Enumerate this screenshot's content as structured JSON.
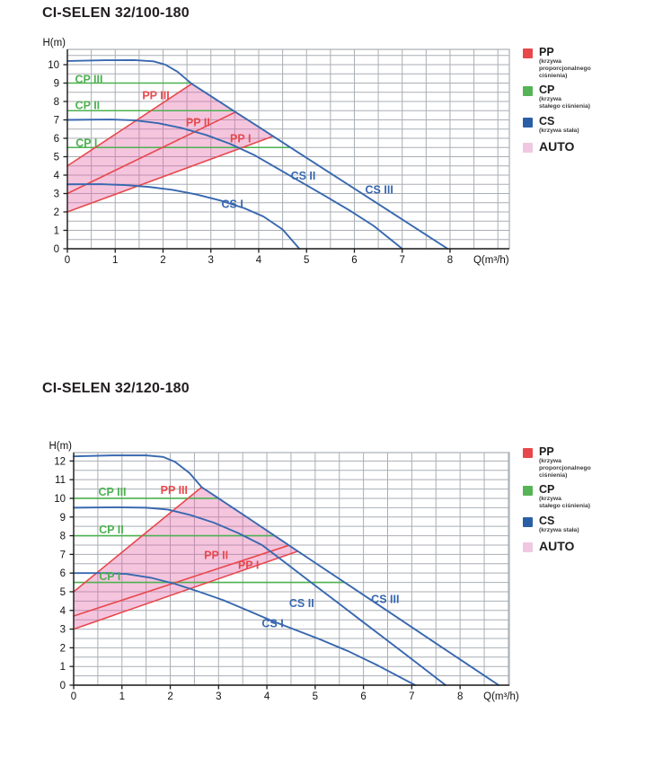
{
  "colors": {
    "pp": "#e8494d",
    "cp": "#4cb151",
    "cs": "#3868af",
    "auto_fill": "#e25fa4",
    "auto_swatch": "#efc7e1",
    "grid": "#a9aeb4",
    "axis": "#1c1c1c",
    "title": "#221e1f"
  },
  "legend": {
    "items": [
      {
        "key": "pp",
        "label": "PP",
        "color": "#e8474b",
        "desc_lines": [
          "(krzywa",
          "proporcjonalnego",
          "ciśnienia)"
        ]
      },
      {
        "key": "cp",
        "label": "CP",
        "color": "#56b456",
        "desc_lines": [
          "(krzywa",
          "stałego ciśnienia)"
        ]
      },
      {
        "key": "cs",
        "label": "CS",
        "color": "#2b5fa5",
        "desc_lines": [
          "(krzywa stała)"
        ]
      },
      {
        "key": "auto",
        "label": "AUTO",
        "color": "#efc7e1",
        "desc_lines": []
      }
    ]
  },
  "chart_data": [
    {
      "type": "line",
      "title": "CI-SELEN 32/100-180",
      "xlabel": "Q(m³/h)",
      "ylabel": "H(m)",
      "xlim": [
        0,
        9.24
      ],
      "ylim": [
        0,
        10.83
      ],
      "xticks": [
        0,
        1,
        2,
        3,
        4,
        5,
        6,
        7,
        8
      ],
      "yticks": [
        0,
        1,
        2,
        3,
        4,
        5,
        6,
        7,
        8,
        9,
        10
      ],
      "grid_step": 0.5,
      "grid": true,
      "legend_position": "right",
      "series": [
        {
          "name": "CP I",
          "role": "cp",
          "points": [
            [
              0,
              5.5
            ],
            [
              4.67,
              5.5
            ]
          ]
        },
        {
          "name": "CP II",
          "role": "cp",
          "points": [
            [
              0,
              7.5
            ],
            [
              3.47,
              7.5
            ]
          ]
        },
        {
          "name": "CP III",
          "role": "cp",
          "points": [
            [
              0,
              9.0
            ],
            [
              2.58,
              9.0
            ]
          ]
        },
        {
          "name": "PP I",
          "role": "pp",
          "points": [
            [
              0,
              2.0
            ],
            [
              4.3,
              6.11
            ]
          ]
        },
        {
          "name": "PP II",
          "role": "pp",
          "points": [
            [
              0,
              3.0
            ],
            [
              3.52,
              7.43
            ]
          ]
        },
        {
          "name": "PP III",
          "role": "pp",
          "points": [
            [
              0,
              4.5
            ],
            [
              2.6,
              8.96
            ]
          ]
        },
        {
          "name": "CS I",
          "role": "cs",
          "points": [
            [
              0,
              3.5
            ],
            [
              0.7,
              3.51
            ],
            [
              1.2,
              3.46
            ],
            [
              1.7,
              3.36
            ],
            [
              2.2,
              3.2
            ],
            [
              2.7,
              2.95
            ],
            [
              3.2,
              2.62
            ],
            [
              3.7,
              2.2
            ],
            [
              4.1,
              1.75
            ],
            [
              4.5,
              1.05
            ],
            [
              4.85,
              0
            ]
          ]
        },
        {
          "name": "CS II",
          "role": "cs",
          "points": [
            [
              0,
              7.0
            ],
            [
              0.9,
              7.02
            ],
            [
              1.4,
              6.98
            ],
            [
              1.9,
              6.82
            ],
            [
              2.4,
              6.55
            ],
            [
              2.9,
              6.18
            ],
            [
              3.4,
              5.7
            ],
            [
              3.9,
              5.1
            ],
            [
              4.4,
              4.35
            ],
            [
              4.9,
              3.6
            ],
            [
              5.4,
              2.85
            ],
            [
              5.9,
              2.08
            ],
            [
              6.4,
              1.25
            ],
            [
              7.0,
              0
            ]
          ]
        },
        {
          "name": "CS III",
          "role": "cs",
          "points": [
            [
              0,
              10.2
            ],
            [
              0.8,
              10.24
            ],
            [
              1.4,
              10.25
            ],
            [
              1.8,
              10.18
            ],
            [
              2.05,
              10.0
            ],
            [
              2.3,
              9.62
            ],
            [
              2.6,
              8.96
            ],
            [
              3.0,
              8.29
            ],
            [
              3.5,
              7.45
            ],
            [
              4.0,
              6.62
            ],
            [
              4.67,
              5.49
            ],
            [
              5.5,
              4.1
            ],
            [
              6.5,
              2.43
            ],
            [
              7.3,
              1.09
            ],
            [
              7.95,
              0
            ]
          ]
        }
      ],
      "auto_region": [
        [
          0,
          2.0
        ],
        [
          0,
          4.5
        ],
        [
          2.6,
          8.96
        ],
        [
          4.3,
          6.11
        ]
      ],
      "curve_labels": [
        {
          "text": "CP III",
          "role": "cp",
          "x": 0.45,
          "y": 9.2
        },
        {
          "text": "CP II",
          "role": "cp",
          "x": 0.42,
          "y": 7.78
        },
        {
          "text": "CP I",
          "role": "cp",
          "x": 0.4,
          "y": 5.73
        },
        {
          "text": "PP III",
          "role": "pp",
          "x": 1.85,
          "y": 8.32
        },
        {
          "text": "PP II",
          "role": "pp",
          "x": 2.73,
          "y": 6.85
        },
        {
          "text": "PP I",
          "role": "pp",
          "x": 3.62,
          "y": 5.97
        },
        {
          "text": "CS I",
          "role": "cs",
          "x": 3.45,
          "y": 2.42
        },
        {
          "text": "CS II",
          "role": "cs",
          "x": 4.93,
          "y": 3.95
        },
        {
          "text": "CS III",
          "role": "cs",
          "x": 6.52,
          "y": 3.2
        }
      ]
    },
    {
      "type": "line",
      "title": "CI-SELEN 32/120-180",
      "xlabel": "Q(m³/h)",
      "ylabel": "H(m)",
      "xlim": [
        0,
        9.02
      ],
      "ylim": [
        0,
        12.45
      ],
      "xticks": [
        0,
        1,
        2,
        3,
        4,
        5,
        6,
        7,
        8
      ],
      "yticks": [
        0,
        1,
        2,
        3,
        4,
        5,
        6,
        7,
        8,
        9,
        10,
        11,
        12
      ],
      "grid_step": 0.5,
      "grid": true,
      "legend_position": "right",
      "series": [
        {
          "name": "CP I",
          "role": "cp",
          "points": [
            [
              0,
              5.5
            ],
            [
              5.61,
              5.5
            ]
          ]
        },
        {
          "name": "CP II",
          "role": "cp",
          "points": [
            [
              0,
              8.0
            ],
            [
              4.16,
              8.0
            ]
          ]
        },
        {
          "name": "CP III",
          "role": "cp",
          "points": [
            [
              0,
              10.0
            ],
            [
              3.0,
              10.0
            ]
          ]
        },
        {
          "name": "PP I",
          "role": "pp",
          "points": [
            [
              0,
              3.0
            ],
            [
              4.64,
              7.17
            ]
          ]
        },
        {
          "name": "PP II",
          "role": "pp",
          "points": [
            [
              0,
              3.7
            ],
            [
              4.46,
              7.49
            ]
          ]
        },
        {
          "name": "PP III",
          "role": "pp",
          "points": [
            [
              0,
              5.0
            ],
            [
              2.65,
              10.6
            ]
          ]
        },
        {
          "name": "CS I",
          "role": "cs",
          "points": [
            [
              0,
              6.0
            ],
            [
              0.7,
              6.0
            ],
            [
              1.1,
              5.95
            ],
            [
              1.6,
              5.75
            ],
            [
              2.1,
              5.42
            ],
            [
              2.6,
              5.0
            ],
            [
              3.1,
              4.55
            ],
            [
              3.6,
              4.0
            ],
            [
              4.1,
              3.45
            ],
            [
              4.6,
              2.95
            ],
            [
              5.1,
              2.45
            ],
            [
              5.7,
              1.8
            ],
            [
              6.3,
              1.05
            ],
            [
              7.07,
              0
            ]
          ]
        },
        {
          "name": "CS II",
          "role": "cs",
          "points": [
            [
              0,
              9.5
            ],
            [
              0.9,
              9.52
            ],
            [
              1.5,
              9.5
            ],
            [
              1.95,
              9.4
            ],
            [
              2.4,
              9.12
            ],
            [
              2.9,
              8.7
            ],
            [
              3.4,
              8.15
            ],
            [
              3.9,
              7.5
            ],
            [
              4.4,
              6.52
            ],
            [
              4.9,
              5.53
            ],
            [
              5.4,
              4.55
            ],
            [
              5.9,
              3.56
            ],
            [
              6.4,
              2.58
            ],
            [
              6.9,
              1.59
            ],
            [
              7.7,
              0
            ]
          ]
        },
        {
          "name": "CS III",
          "role": "cs",
          "points": [
            [
              0,
              12.25
            ],
            [
              0.8,
              12.3
            ],
            [
              1.5,
              12.3
            ],
            [
              1.85,
              12.22
            ],
            [
              2.1,
              11.95
            ],
            [
              2.4,
              11.35
            ],
            [
              2.65,
              10.6
            ],
            [
              3.0,
              10.0
            ],
            [
              3.6,
              8.97
            ],
            [
              4.16,
              8.0
            ],
            [
              5.0,
              6.55
            ],
            [
              5.61,
              5.5
            ],
            [
              6.5,
              3.97
            ],
            [
              7.5,
              2.24
            ],
            [
              8.8,
              0
            ]
          ]
        }
      ],
      "auto_region": [
        [
          0,
          3.0
        ],
        [
          0,
          5.0
        ],
        [
          2.65,
          10.6
        ],
        [
          4.64,
          7.17
        ]
      ],
      "curve_labels": [
        {
          "text": "CP III",
          "role": "cp",
          "x": 0.8,
          "y": 10.33
        },
        {
          "text": "CP II",
          "role": "cp",
          "x": 0.78,
          "y": 8.32
        },
        {
          "text": "CP I",
          "role": "cp",
          "x": 0.75,
          "y": 5.82
        },
        {
          "text": "PP III",
          "role": "pp",
          "x": 2.08,
          "y": 10.42
        },
        {
          "text": "PP II",
          "role": "pp",
          "x": 2.95,
          "y": 6.95
        },
        {
          "text": "PP I",
          "role": "pp",
          "x": 3.62,
          "y": 6.42
        },
        {
          "text": "CS I",
          "role": "cs",
          "x": 4.12,
          "y": 3.3
        },
        {
          "text": "CS II",
          "role": "cs",
          "x": 4.72,
          "y": 4.38
        },
        {
          "text": "CS III",
          "role": "cs",
          "x": 6.45,
          "y": 4.6
        }
      ]
    }
  ]
}
